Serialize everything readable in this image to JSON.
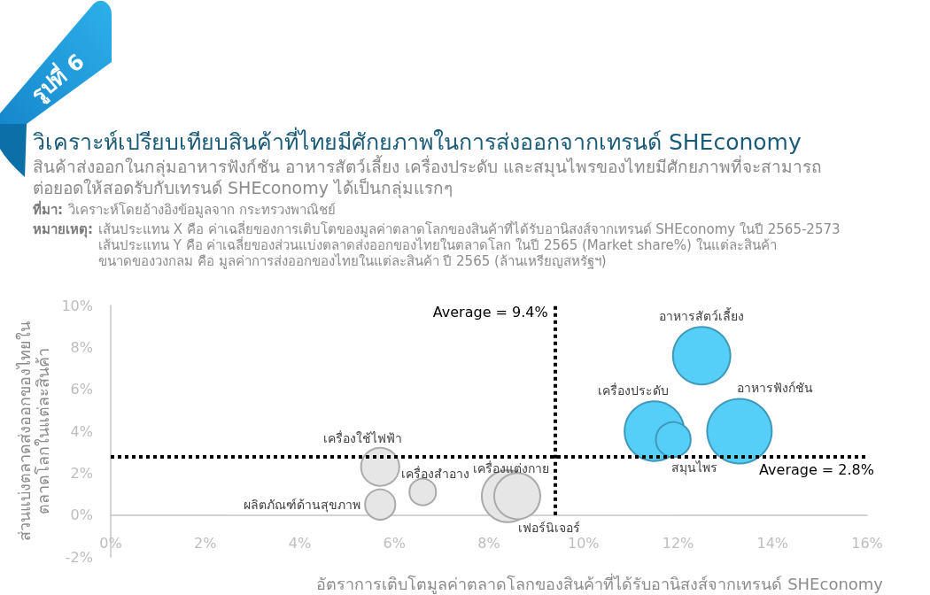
{
  "chart_data": {
    "type": "bubble",
    "title": "วิเคราะห์เปรียบเทียบสินค้าที่ไทยมีศักยภาพในการส่งออกจากเทรนด์ SHEconomy",
    "subtitle": "สินค้าส่งออกในกลุ่มอาหารฟังก์ชัน อาหารสัตว์เลี้ยง เครื่องประดับ และสมุนไพรของไทยมีศักยภาพที่จะสามารถต่อยอดให้สอดรับกับเทรนด์ SHEconomy ได้เป็นกลุ่มแรกๆ",
    "xlabel": "อัตราการเติบโตมูลค่าตลาดโลกของสินค้าที่ได้รับอานิสงส์จากเทรนด์ SHEconomy",
    "ylabel": "ส่วนแบ่งตลาดส่งออกของไทยใน\nตลาดโลกในแต่ละสินค้า",
    "annotations": [
      "รูปที่ 6",
      "ที่มา: วิเคราะห์โดยอ้างอิงข้อมูลจาก กระทรวงพาณิชย์",
      "หมายเหตุ: เส้นประแทน X คือ ค่าเฉลี่ยของการเติบโตของมูลค่าตลาดโลกของสินค้าที่ได้รับอานิสงส์จากเทรนด์ SHEconomy ในปี 2565-2573\nเส้นประแทน Y คือ ค่าเฉลี่ยของส่วนแบ่งตลาดส่งออกของไทยในตลาดโลก ในปี 2565 (Market share%) ในแต่ละสินค้า\nขนาดของวงกลม คือ มูลค่าการส่งออกของไทยในแต่ละสินค้า ปี 2565 (ล้านเหรียญสหรัฐฯ)"
    ],
    "xlim": [
      0,
      16
    ],
    "xticks": [
      {
        "value": 0,
        "label": "0%"
      },
      {
        "value": 2,
        "label": "2%"
      },
      {
        "value": 4,
        "label": "4%"
      },
      {
        "value": 6,
        "label": "6%"
      },
      {
        "value": 8,
        "label": "8%"
      },
      {
        "value": 10,
        "label": "10%"
      },
      {
        "value": 12,
        "label": "12%"
      },
      {
        "value": 14,
        "label": "14%"
      },
      {
        "value": 16,
        "label": "16%"
      }
    ],
    "ylim": [
      -2,
      10
    ],
    "yticks": [
      {
        "value": -2,
        "label": "-2%"
      },
      {
        "value": 0,
        "label": "0%"
      },
      {
        "value": 2,
        "label": "2%"
      },
      {
        "value": 4,
        "label": "4%"
      },
      {
        "value": 6,
        "label": "6%"
      },
      {
        "value": 8,
        "label": "8%"
      },
      {
        "value": 10,
        "label": "10%"
      }
    ],
    "grid": false,
    "legend": false,
    "ref_lines": [
      {
        "axis": "x",
        "value": 9.4,
        "label": "Average = 9.4%",
        "color": "#000000",
        "line_style": "dotted"
      },
      {
        "axis": "y",
        "value": 2.8,
        "label": "Average = 2.8%",
        "color": "#000000",
        "line_style": "dotted"
      }
    ],
    "series": [
      {
        "name": "อาหารสัตว์เลี้ยง",
        "color": "#56cff8",
        "x": [
          12.5
        ],
        "values": [
          7.6
        ],
        "sizes": [
          0.79
        ]
      },
      {
        "name": "เครื่องประดับ",
        "color": "#56cff8",
        "x": [
          11.5
        ],
        "values": [
          4.0
        ],
        "sizes": [
          0.85
        ]
      },
      {
        "name": "อาหารฟังก์ชัน",
        "color": "#56cff8",
        "x": [
          13.3
        ],
        "values": [
          4.0
        ],
        "sizes": [
          1
        ]
      },
      {
        "name": "สมุนไพร",
        "color": "#56cff8",
        "x": [
          11.9
        ],
        "values": [
          3.6
        ],
        "sizes": [
          0.29
        ]
      },
      {
        "name": "เครื่องใช้ไฟฟ้า",
        "color": "#e6e6e6",
        "x": [
          5.7
        ],
        "values": [
          2.3
        ],
        "sizes": [
          0.35
        ]
      },
      {
        "name": "เครื่องสำอาง",
        "color": "#e6e6e6",
        "x": [
          6.6
        ],
        "values": [
          1.1
        ],
        "sizes": [
          0.17
        ]
      },
      {
        "name": "ผลิตภัณฑ์ด้านสุขภาพ",
        "color": "#e6e6e6",
        "x": [
          5.7
        ],
        "values": [
          0.5
        ],
        "sizes": [
          0.22
        ]
      },
      {
        "name": "เครื่องแต่งกาย",
        "color": "#e6e6e6",
        "x": [
          8.4
        ],
        "values": [
          0.9
        ],
        "sizes": [
          0.65
        ]
      },
      {
        "name": "เฟอร์นิเจอร์",
        "color": "#e6e6e6",
        "x": [
          8.6
        ],
        "values": [
          0.9
        ],
        "sizes": [
          0.51
        ]
      }
    ]
  }
}
